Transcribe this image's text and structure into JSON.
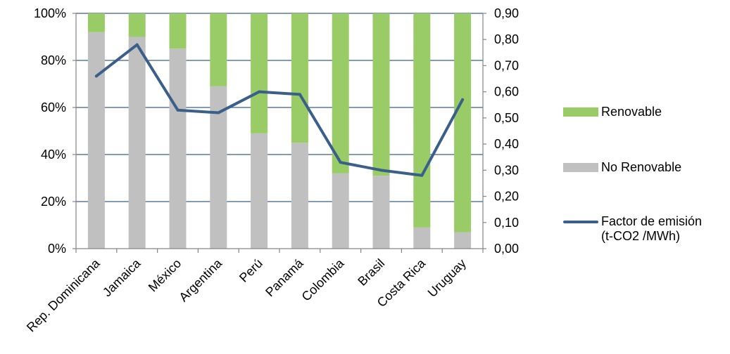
{
  "chart_data": {
    "type": "bar",
    "stacked": true,
    "categories": [
      "Rep. Dominicana",
      "Jamaica",
      "México",
      "Argentina",
      "Perú",
      "Panamá",
      "Colombia",
      "Brasil",
      "Costa Rica",
      "Uruguay"
    ],
    "series": [
      {
        "name": "No Renovable",
        "kind": "bar",
        "axis": "left",
        "color": "#c0c0c0",
        "values": [
          92,
          90,
          85,
          69,
          49,
          45,
          32,
          31,
          9,
          7
        ]
      },
      {
        "name": "Renovable",
        "kind": "bar",
        "axis": "left",
        "color": "#99cc66",
        "values": [
          8,
          10,
          15,
          31,
          51,
          55,
          68,
          69,
          91,
          93
        ]
      },
      {
        "name": "Factor de emisión (t-CO2 /MWh)",
        "kind": "line",
        "axis": "right",
        "color": "#3a5f8a",
        "values": [
          0.66,
          0.78,
          0.53,
          0.52,
          0.6,
          0.59,
          0.33,
          0.3,
          0.28,
          0.57
        ]
      }
    ],
    "y_left": {
      "min": 0,
      "max": 100,
      "ticks": [
        0,
        20,
        40,
        60,
        80,
        100
      ],
      "tick_labels": [
        "0%",
        "20%",
        "40%",
        "60%",
        "80%",
        "100%"
      ]
    },
    "y_right": {
      "min": 0,
      "max": 0.9,
      "ticks": [
        0,
        0.1,
        0.2,
        0.3,
        0.4,
        0.5,
        0.6,
        0.7,
        0.8,
        0.9
      ],
      "tick_labels": [
        "0,00",
        "0,10",
        "0,20",
        "0,30",
        "0,40",
        "0,50",
        "0,60",
        "0,70",
        "0,80",
        "0,90"
      ]
    },
    "grid": true,
    "grid_color": "#3a5f8a",
    "legend_position": "right",
    "legend": [
      {
        "label": "Renovable",
        "color": "#99cc66",
        "kind": "bar"
      },
      {
        "label": "No Renovable",
        "color": "#c0c0c0",
        "kind": "bar"
      },
      {
        "label_lines": [
          "Factor de emisión",
          "(t-CO2 /MWh)"
        ],
        "color": "#3a5f8a",
        "kind": "line"
      }
    ]
  }
}
